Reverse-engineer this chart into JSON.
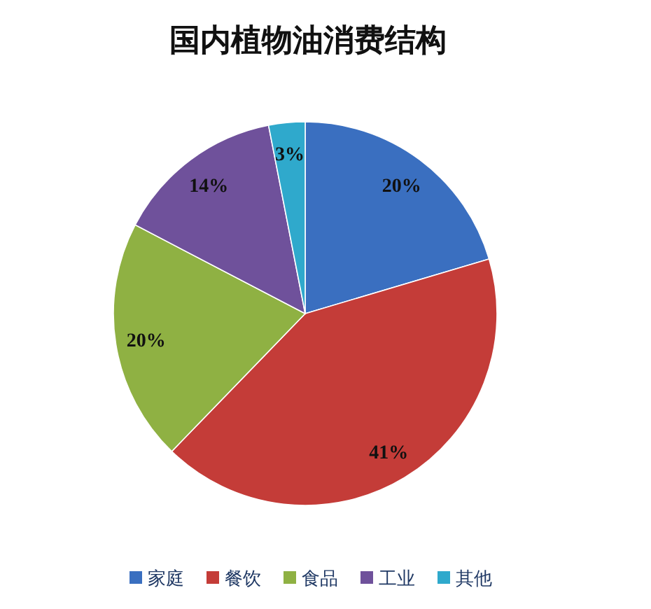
{
  "chart_data": {
    "type": "pie",
    "title": "国内植物油消费结构",
    "categories": [
      "家庭",
      "餐饮",
      "食品",
      "工业",
      "其他"
    ],
    "values": [
      20,
      41,
      20,
      14,
      3
    ],
    "colors": [
      "#3a6fc0",
      "#c43c38",
      "#8fb143",
      "#6f519b",
      "#2fa9cc"
    ],
    "value_labels": [
      "20%",
      "41%",
      "20%",
      "14%",
      "3%"
    ],
    "legend": "bottom"
  }
}
